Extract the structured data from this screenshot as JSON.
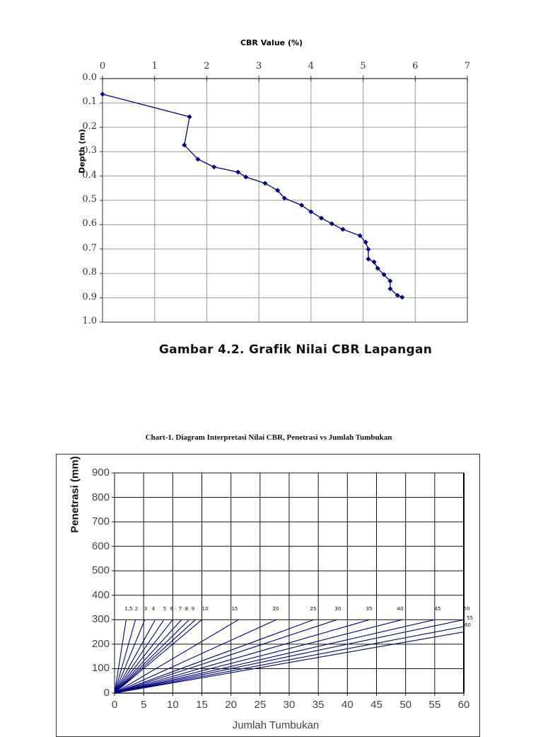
{
  "chart_data": [
    {
      "type": "line",
      "title": "CBR Value (%)",
      "xlabel": "CBR Value (%)",
      "ylabel": "Depth (m)",
      "x_axis_position": "top",
      "y_axis_inverted": true,
      "xlim": [
        0,
        7
      ],
      "ylim": [
        0.0,
        1.0
      ],
      "x_ticks": [
        "0",
        "1",
        "2",
        "3",
        "4",
        "5",
        "6",
        "7"
      ],
      "y_ticks": [
        "0.0",
        "0.1",
        "0.2",
        "0.3",
        "0.4",
        "0.5",
        "0.6",
        "0.7",
        "0.8",
        "0.9",
        "1.0"
      ],
      "grid": true,
      "marker": "diamond",
      "line_color": "#000080",
      "series": [
        {
          "name": "CBR Lapangan",
          "x": [
            0.0,
            1.67,
            1.57,
            1.83,
            2.14,
            2.6,
            2.75,
            3.12,
            3.36,
            3.49,
            3.82,
            4.0,
            4.2,
            4.4,
            4.61,
            4.94,
            5.05,
            5.1,
            5.1,
            5.21,
            5.28,
            5.4,
            5.52,
            5.52,
            5.66,
            5.75
          ],
          "y": [
            0.064,
            0.157,
            0.273,
            0.331,
            0.363,
            0.384,
            0.404,
            0.43,
            0.459,
            0.491,
            0.52,
            0.547,
            0.573,
            0.596,
            0.619,
            0.645,
            0.672,
            0.701,
            0.741,
            0.753,
            0.779,
            0.805,
            0.831,
            0.863,
            0.89,
            0.898
          ]
        }
      ],
      "caption": "Gambar 4.2. Grafik Nilai CBR Lapangan"
    },
    {
      "type": "line",
      "title": "Chart-1. Diagram Interpretasi Nilai CBR, Penetrasi vs Jumlah Tumbukan",
      "xlabel": "Jumlah Tumbukan",
      "ylabel": "Penetrasi (mm)",
      "xlim": [
        0,
        60
      ],
      "ylim": [
        0,
        900
      ],
      "x_ticks": [
        "0",
        "5",
        "10",
        "15",
        "20",
        "25",
        "30",
        "35",
        "40",
        "45",
        "50",
        "55",
        "60"
      ],
      "y_ticks": [
        "0",
        "100",
        "200",
        "300",
        "400",
        "500",
        "600",
        "700",
        "800",
        "900"
      ],
      "grid": true,
      "line_color": "#000080",
      "reference_line_label_row_y": 350,
      "series_labels": [
        "1,5",
        "2",
        "3",
        "4",
        "5",
        "6",
        "7",
        "8",
        "9",
        "10",
        "15",
        "20",
        "25",
        "30",
        "35",
        "40",
        "45",
        "50",
        "55",
        "60"
      ],
      "series_endpoints": [
        {
          "label": "1,5",
          "x": 2.0,
          "y": 300
        },
        {
          "label": "2",
          "x": 3.6,
          "y": 300
        },
        {
          "label": "3",
          "x": 5.2,
          "y": 300
        },
        {
          "label": "4",
          "x": 7.0,
          "y": 300
        },
        {
          "label": "5",
          "x": 8.5,
          "y": 300
        },
        {
          "label": "6",
          "x": 10.0,
          "y": 300
        },
        {
          "label": "7",
          "x": 11.5,
          "y": 300
        },
        {
          "label": "8",
          "x": 12.8,
          "y": 300
        },
        {
          "label": "9",
          "x": 13.9,
          "y": 300
        },
        {
          "label": "10",
          "x": 15.0,
          "y": 300
        },
        {
          "label": "15",
          "x": 21.3,
          "y": 300
        },
        {
          "label": "20",
          "x": 27.8,
          "y": 300
        },
        {
          "label": "25",
          "x": 34.2,
          "y": 300
        },
        {
          "label": "30",
          "x": 38.2,
          "y": 300
        },
        {
          "label": "35",
          "x": 43.8,
          "y": 300
        },
        {
          "label": "40",
          "x": 49.4,
          "y": 300
        },
        {
          "label": "45",
          "x": 55.0,
          "y": 300
        },
        {
          "label": "50",
          "x": 60.0,
          "y": 300
        },
        {
          "label": "55",
          "x": 60.0,
          "y": 272
        },
        {
          "label": "60",
          "x": 60.0,
          "y": 250
        }
      ]
    }
  ],
  "chart1": {
    "title": "CBR Value (%)",
    "ylabel": "Depth (m)",
    "x_ticks": [
      "0",
      "1",
      "2",
      "3",
      "4",
      "5",
      "6",
      "7"
    ],
    "y_ticks": [
      "0.0",
      "0.1",
      "0.2",
      "0.3",
      "0.4",
      "0.5",
      "0.6",
      "0.7",
      "0.8",
      "0.9",
      "1.0"
    ],
    "caption": "Gambar 4.2. Grafik Nilai CBR Lapangan"
  },
  "chart2": {
    "title": "Chart-1. Diagram Interpretasi Nilai CBR, Penetrasi vs Jumlah Tumbukan",
    "ylabel": "Penetrasi (mm)",
    "xlabel": "Jumlah Tumbukan",
    "x_ticks": [
      "0",
      "5",
      "10",
      "15",
      "20",
      "25",
      "30",
      "35",
      "40",
      "45",
      "50",
      "55",
      "60"
    ],
    "y_ticks": [
      "0",
      "100",
      "200",
      "300",
      "400",
      "500",
      "600",
      "700",
      "800",
      "900"
    ]
  }
}
